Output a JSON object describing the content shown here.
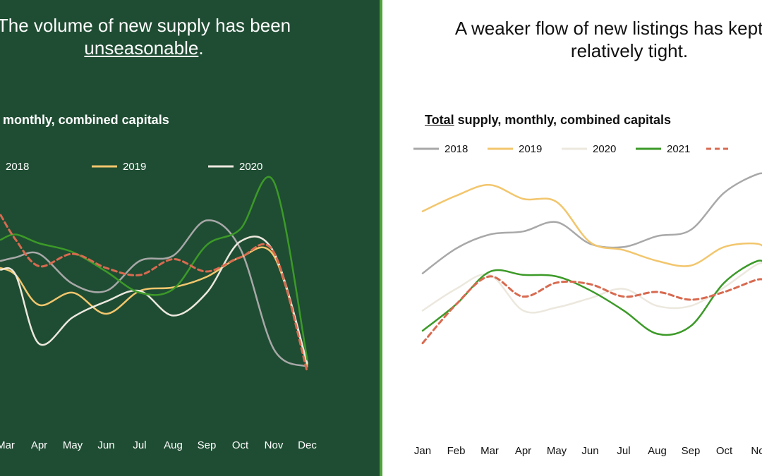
{
  "left_panel": {
    "headline_prefix": "The volume of new supply has been",
    "headline_underlined": "unseasonable",
    "headline_suffix": ".",
    "chart_title": "monthly, combined capitals"
  },
  "right_panel": {
    "headline_line1": "A weaker flow of new listings has kept the t",
    "headline_line2": "relatively tight.",
    "chart_title_underlined": "Total",
    "chart_title_rest": " supply, monthly, combined capitals"
  },
  "colors": {
    "left_background": "#1f4d33",
    "divider": "#4fa33a",
    "series_2018": "#a8a8a8",
    "series_2019": "#f2c66d",
    "series_2020": "#ece8de",
    "series_2021": "#3c9a28",
    "series_2022": "#d86a50"
  },
  "chart_data": [
    {
      "type": "line",
      "title": "monthly, combined capitals",
      "categories": [
        "Mar",
        "Apr",
        "May",
        "Jun",
        "Jul",
        "Aug",
        "Sep",
        "Oct",
        "Nov",
        "Dec"
      ],
      "y_axis_shown": false,
      "grid": false,
      "legend_position": "top",
      "legend": [
        "2018",
        "2019",
        "2020"
      ],
      "series": [
        {
          "name": "2018",
          "color": "#a8a8a8",
          "dashed": false,
          "x": [
            -0.15,
            0.3,
            1,
            2,
            3,
            4,
            5,
            6,
            7,
            8,
            9
          ],
          "values": [
            60,
            62,
            64,
            47,
            43,
            60,
            63,
            83,
            67,
            10,
            0
          ]
        },
        {
          "name": "2019",
          "color": "#f2c66d",
          "dashed": false,
          "x": [
            -0.15,
            0.3,
            1,
            2,
            3,
            4,
            5,
            6,
            7,
            8,
            9
          ],
          "values": [
            56,
            52,
            35,
            42,
            30,
            43,
            45,
            51,
            62,
            63,
            1
          ]
        },
        {
          "name": "2020",
          "color": "#ece8de",
          "dashed": false,
          "x": [
            -0.15,
            0.3,
            1,
            2,
            3,
            4,
            5,
            6,
            7,
            8,
            9
          ],
          "values": [
            55,
            52,
            13,
            28,
            37,
            43,
            29,
            42,
            71,
            65,
            2
          ]
        },
        {
          "name": "",
          "color": "#3c9a28",
          "dashed": false,
          "x": [
            -0.15,
            0.3,
            1,
            2,
            3,
            4,
            5,
            6,
            7,
            8,
            9
          ],
          "values": [
            72,
            75,
            70,
            65,
            54,
            42,
            44,
            69,
            78,
            105,
            4
          ]
        },
        {
          "name": "",
          "color": "#d86a50",
          "dashed": true,
          "x": [
            -0.15,
            0.3,
            1,
            2,
            3,
            4,
            5,
            6,
            7,
            8,
            9
          ],
          "values": [
            86,
            72,
            57,
            64,
            56,
            52,
            61,
            54,
            62,
            65,
            -3
          ]
        }
      ]
    },
    {
      "type": "line",
      "title": "Total supply, monthly, combined capitals",
      "categories": [
        "Jan",
        "Feb",
        "Mar",
        "Apr",
        "May",
        "Jun",
        "Jul",
        "Aug",
        "Sep",
        "Oct",
        "No"
      ],
      "y_axis_shown": false,
      "grid": false,
      "legend_position": "top",
      "legend": [
        "2018",
        "2019",
        "2020",
        "2021"
      ],
      "series": [
        {
          "name": "2018",
          "color": "#a8a8a8",
          "dashed": false,
          "x": [
            0,
            1,
            2,
            3,
            4,
            5,
            6,
            7,
            8,
            9,
            10,
            10.3
          ],
          "values": [
            42,
            58,
            67,
            69,
            75,
            61,
            59,
            66,
            70,
            94,
            106,
            104
          ]
        },
        {
          "name": "2019",
          "color": "#f2c66d",
          "dashed": false,
          "x": [
            0,
            1,
            2,
            3,
            4,
            5,
            6,
            7,
            8,
            9,
            10,
            10.3
          ],
          "values": [
            82,
            92,
            99,
            90,
            88,
            62,
            57,
            50,
            47,
            59,
            61,
            55
          ]
        },
        {
          "name": "2020",
          "color": "#ece8de",
          "dashed": false,
          "x": [
            0,
            1,
            2,
            3,
            4,
            5,
            6,
            7,
            8,
            9,
            10,
            10.3
          ],
          "values": [
            18,
            32,
            41,
            18,
            20,
            26,
            32,
            21,
            21,
            33,
            48,
            46
          ]
        },
        {
          "name": "2021",
          "color": "#3c9a28",
          "dashed": false,
          "x": [
            0,
            1,
            2,
            3,
            4,
            5,
            6,
            7,
            8,
            9,
            10,
            10.3
          ],
          "values": [
            5,
            22,
            43,
            41,
            40,
            31,
            18,
            3,
            8,
            36,
            50,
            45
          ]
        },
        {
          "name": "",
          "color": "#d86a50",
          "dashed": true,
          "x": [
            0,
            1,
            2,
            3,
            4,
            5,
            6,
            7,
            8,
            9,
            10,
            10.3
          ],
          "values": [
            -3,
            22,
            40,
            27,
            36,
            35,
            27,
            30,
            25,
            30,
            38,
            36
          ]
        }
      ]
    }
  ]
}
